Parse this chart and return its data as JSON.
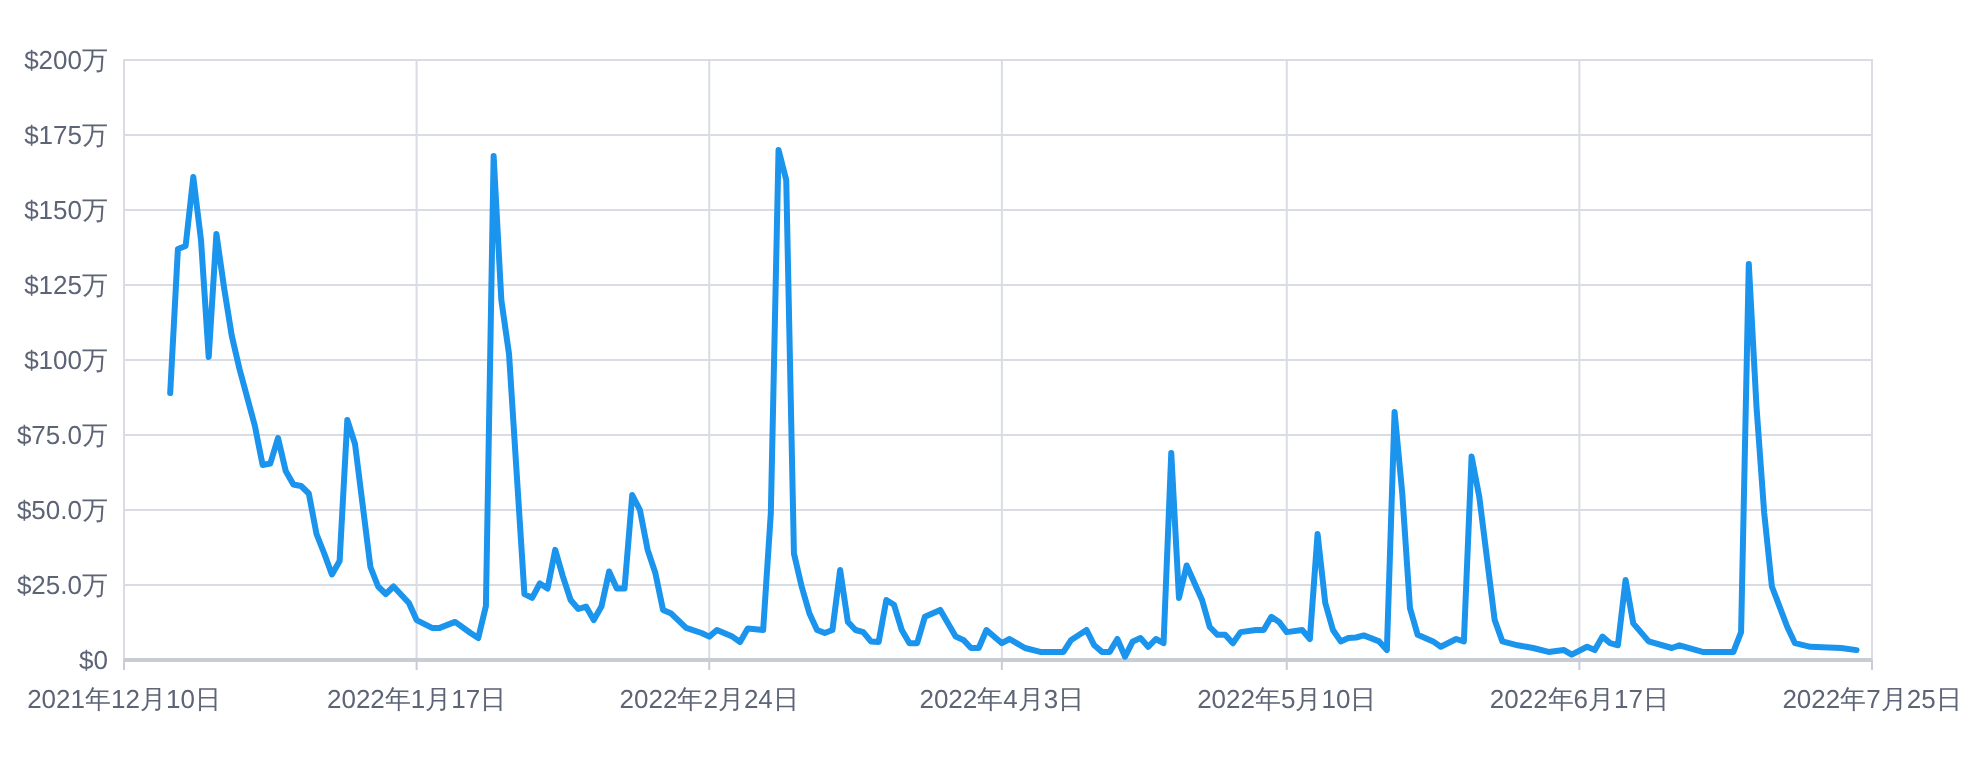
{
  "chart_data": {
    "type": "line",
    "x": [
      "2021-12-16",
      "2021-12-17",
      "2021-12-18",
      "2021-12-19",
      "2021-12-20",
      "2021-12-21",
      "2021-12-22",
      "2021-12-23",
      "2021-12-24",
      "2021-12-25",
      "2021-12-27",
      "2021-12-28",
      "2021-12-29",
      "2021-12-30",
      "2021-12-31",
      "2022-01-01",
      "2022-01-02",
      "2022-01-03",
      "2022-01-04",
      "2022-01-05",
      "2022-01-06",
      "2022-01-07",
      "2022-01-08",
      "2022-01-09",
      "2022-01-11",
      "2022-01-12",
      "2022-01-13",
      "2022-01-14",
      "2022-01-16",
      "2022-01-17",
      "2022-01-19",
      "2022-01-20",
      "2022-01-22",
      "2022-01-24",
      "2022-01-25",
      "2022-01-26",
      "2022-01-27",
      "2022-01-28",
      "2022-01-29",
      "2022-01-30",
      "2022-01-31",
      "2022-02-01",
      "2022-02-02",
      "2022-02-03",
      "2022-02-04",
      "2022-02-05",
      "2022-02-06",
      "2022-02-07",
      "2022-02-08",
      "2022-02-09",
      "2022-02-10",
      "2022-02-11",
      "2022-02-12",
      "2022-02-13",
      "2022-02-14",
      "2022-02-15",
      "2022-02-16",
      "2022-02-17",
      "2022-02-18",
      "2022-02-19",
      "2022-02-21",
      "2022-02-23",
      "2022-02-24",
      "2022-02-25",
      "2022-02-27",
      "2022-02-28",
      "2022-03-01",
      "2022-03-03",
      "2022-03-04",
      "2022-03-05",
      "2022-03-06",
      "2022-03-07",
      "2022-03-08",
      "2022-03-09",
      "2022-03-10",
      "2022-03-11",
      "2022-03-12",
      "2022-03-13",
      "2022-03-14",
      "2022-03-15",
      "2022-03-16",
      "2022-03-17",
      "2022-03-18",
      "2022-03-19",
      "2022-03-20",
      "2022-03-21",
      "2022-03-22",
      "2022-03-23",
      "2022-03-24",
      "2022-03-26",
      "2022-03-28",
      "2022-03-29",
      "2022-03-30",
      "2022-03-31",
      "2022-04-01",
      "2022-04-03",
      "2022-04-04",
      "2022-04-06",
      "2022-04-08",
      "2022-04-11",
      "2022-04-12",
      "2022-04-14",
      "2022-04-15",
      "2022-04-16",
      "2022-04-17",
      "2022-04-18",
      "2022-04-19",
      "2022-04-20",
      "2022-04-21",
      "2022-04-22",
      "2022-04-23",
      "2022-04-24",
      "2022-04-25",
      "2022-04-26",
      "2022-04-27",
      "2022-04-29",
      "2022-04-30",
      "2022-05-01",
      "2022-05-02",
      "2022-05-03",
      "2022-05-04",
      "2022-05-06",
      "2022-05-07",
      "2022-05-08",
      "2022-05-09",
      "2022-05-10",
      "2022-05-12",
      "2022-05-13",
      "2022-05-14",
      "2022-05-15",
      "2022-05-16",
      "2022-05-17",
      "2022-05-18",
      "2022-05-19",
      "2022-05-20",
      "2022-05-22",
      "2022-05-23",
      "2022-05-24",
      "2022-05-25",
      "2022-05-26",
      "2022-05-27",
      "2022-05-29",
      "2022-05-30",
      "2022-06-01",
      "2022-06-02",
      "2022-06-03",
      "2022-06-04",
      "2022-06-06",
      "2022-06-07",
      "2022-06-09",
      "2022-06-11",
      "2022-06-13",
      "2022-06-15",
      "2022-06-16",
      "2022-06-18",
      "2022-06-19",
      "2022-06-20",
      "2022-06-21",
      "2022-06-22",
      "2022-06-23",
      "2022-06-24",
      "2022-06-26",
      "2022-06-29",
      "2022-06-30",
      "2022-07-03",
      "2022-07-07",
      "2022-07-08",
      "2022-07-09",
      "2022-07-10",
      "2022-07-11",
      "2022-07-12",
      "2022-07-14",
      "2022-07-15",
      "2022-07-17",
      "2022-07-21",
      "2022-07-23"
    ],
    "series": [
      {
        "color": "#1a94ec",
        "values": [
          89,
          137,
          138,
          161,
          140,
          101,
          142,
          124,
          108,
          97,
          78,
          65,
          65.5,
          74,
          63,
          58.5,
          58,
          55.5,
          42,
          35.5,
          28.5,
          33,
          80,
          72,
          31,
          24.5,
          22,
          24.5,
          19,
          13.3,
          10.7,
          10.7,
          12.7,
          9,
          7.3,
          18,
          168,
          120,
          102,
          62,
          22,
          20.7,
          25.5,
          23.8,
          36.7,
          27.8,
          20,
          17,
          17.8,
          13.3,
          17.8,
          29.5,
          23.8,
          23.8,
          55,
          50,
          36.7,
          29,
          16.7,
          15.6,
          10.7,
          9,
          7.8,
          10,
          7.8,
          6,
          10.5,
          10,
          49,
          170,
          160,
          35.5,
          24.5,
          15.6,
          10,
          9,
          10,
          30,
          12.7,
          10,
          9.3,
          6.2,
          6,
          20,
          18.4,
          10,
          5.6,
          5.6,
          14.4,
          16.7,
          7.8,
          6.7,
          4,
          4,
          10,
          5.6,
          7,
          4,
          2.7,
          2.7,
          6.7,
          10,
          4.9,
          2.7,
          2.7,
          7,
          1.1,
          6.2,
          7.3,
          4.4,
          7,
          5.6,
          69,
          20.7,
          31.5,
          20,
          11,
          8.4,
          8.4,
          5.6,
          9.3,
          10,
          10,
          14.4,
          12.7,
          9.3,
          10,
          7,
          42,
          19,
          10,
          6.2,
          7.3,
          7.5,
          8.2,
          6.2,
          3.3,
          82.7,
          55.5,
          17.3,
          8.4,
          6.2,
          4.4,
          7,
          6.2,
          67.8,
          54.4,
          13.3,
          6.2,
          4.9,
          4,
          2.7,
          3.3,
          1.8,
          4.4,
          3.3,
          7.8,
          5.6,
          4.9,
          26.7,
          12.2,
          6.2,
          4,
          4.9,
          2.7,
          2.7,
          9.3,
          132,
          84.4,
          49,
          24.5,
          11,
          5.6,
          4.4,
          4,
          3.3
        ]
      }
    ],
    "xlim": [
      "2021-12-10",
      "2022-07-25"
    ],
    "xticks": [
      {
        "value": "2021-12-10",
        "label": "2021年12月10日"
      },
      {
        "value": "2022-01-17",
        "label": "2022年1月17日"
      },
      {
        "value": "2022-02-24",
        "label": "2022年2月24日"
      },
      {
        "value": "2022-04-03",
        "label": "2022年4月3日"
      },
      {
        "value": "2022-05-10",
        "label": "2022年5月10日"
      },
      {
        "value": "2022-06-17",
        "label": "2022年6月17日"
      },
      {
        "value": "2022-07-25",
        "label": "2022年7月25日"
      }
    ],
    "ylim": [
      0,
      200
    ],
    "yticks": [
      {
        "value": 0,
        "label": "$0"
      },
      {
        "value": 25,
        "label": "$25.0万"
      },
      {
        "value": 50,
        "label": "$50.0万"
      },
      {
        "value": 75,
        "label": "$75.0万"
      },
      {
        "value": 100,
        "label": "$100万"
      },
      {
        "value": 125,
        "label": "$125万"
      },
      {
        "value": 150,
        "label": "$150万"
      },
      {
        "value": 175,
        "label": "$175万"
      },
      {
        "value": 200,
        "label": "$200万"
      }
    ],
    "grid": true,
    "line_style": "solid",
    "marker": "none"
  }
}
